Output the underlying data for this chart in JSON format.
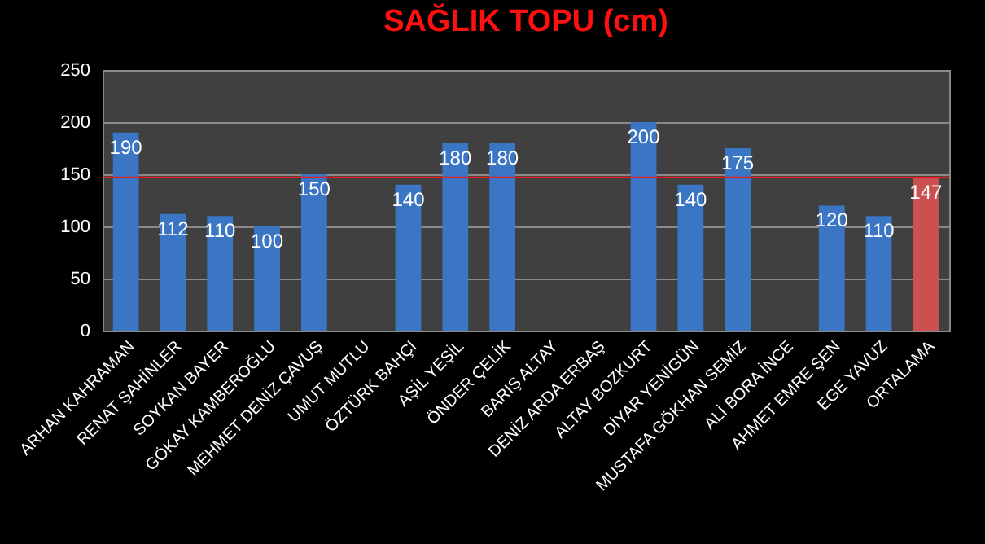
{
  "chart_data": {
    "type": "bar",
    "title": "SAĞLIK TOPU (cm)",
    "categories": [
      "ARHAN KAHRAMAN",
      "RENAT ŞAHİNLER",
      "SOYKAN BAYER",
      "GÖKAY KAMBEROĞLU",
      "MEHMET DENİZ ÇAVUŞ",
      "UMUT MUTLU",
      "ÖZTÜRK BAHÇI",
      "AŞİL YEŞİL",
      "ÖNDER ÇELİK",
      "BARIŞ ALTAY",
      "DENİZ ARDA ERBAŞ",
      "ALTAY BOZKURT",
      "DİYAR YENİGÜN",
      "MUSTAFA GÖKHAN SEMİZ",
      "ALİ BORA İNCE",
      "AHMET EMRE ŞEN",
      "EGE YAVUZ",
      "ORTALAMA"
    ],
    "values": [
      190,
      112,
      110,
      100,
      150,
      null,
      140,
      180,
      180,
      null,
      null,
      200,
      140,
      175,
      null,
      120,
      110,
      147
    ],
    "colors": [
      "#3a76c4",
      "#3a76c4",
      "#3a76c4",
      "#3a76c4",
      "#3a76c4",
      "#3a76c4",
      "#3a76c4",
      "#3a76c4",
      "#3a76c4",
      "#3a76c4",
      "#3a76c4",
      "#3a76c4",
      "#3a76c4",
      "#3a76c4",
      "#3a76c4",
      "#3a76c4",
      "#3a76c4",
      "#cc5050"
    ],
    "ylim": [
      0,
      250
    ],
    "yticks": [
      0,
      50,
      100,
      150,
      200,
      250
    ],
    "grid": "y",
    "data_labels": true,
    "ref_lines": [
      {
        "axis": "y",
        "value": 147,
        "color": "#e02020"
      }
    ]
  }
}
